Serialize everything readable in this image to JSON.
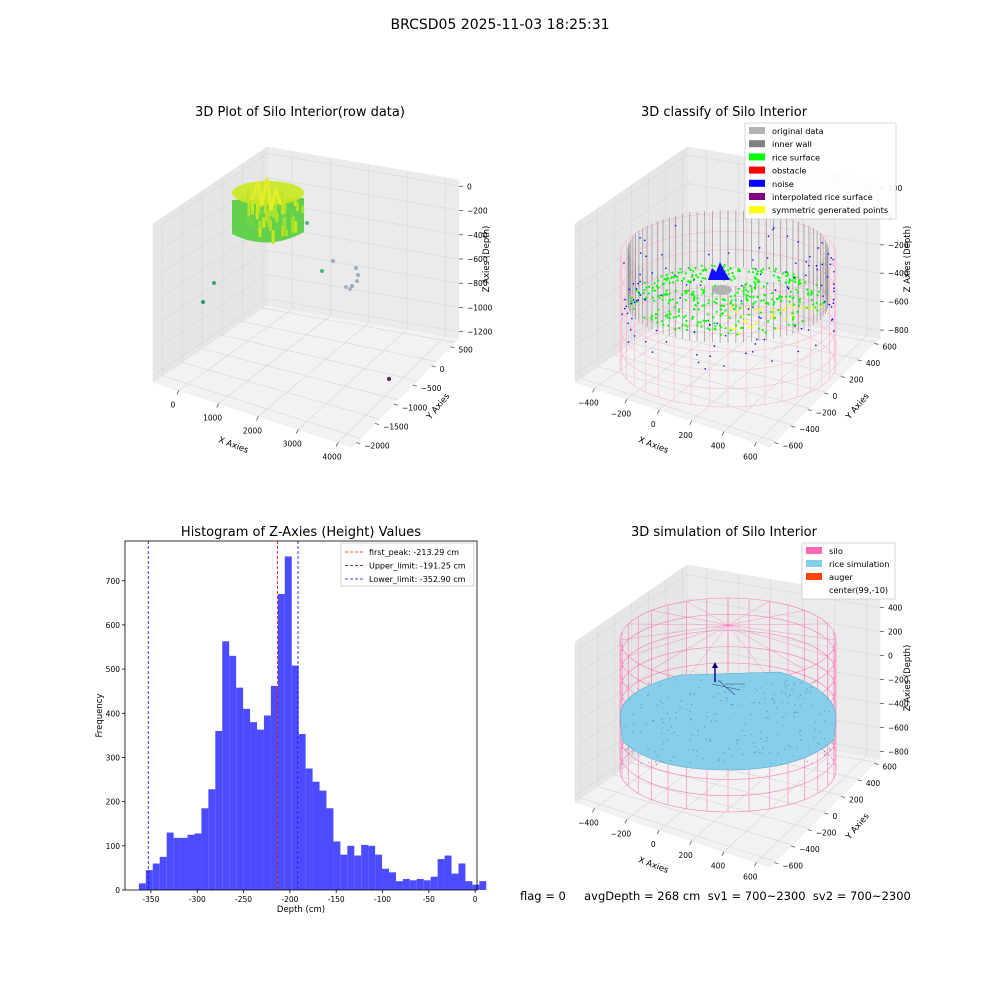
{
  "figure": {
    "suptitle": "BRCSD05 2025-11-03 18:25:31",
    "footer": "flag = 0     avgDepth = 268 cm  sv1 = 700~2300  sv2 = 700~2300"
  },
  "colors": {
    "hist_bar": "#4b4bff",
    "first_peak": "#ff0000",
    "limit_line": "#0000ff",
    "pane": "#f2f2f2",
    "grid": "#d9d9d9",
    "silo_wire": "#ff69b4",
    "rice_sim": "#87ceeb",
    "rice_surface": "#00ff00",
    "noise": "#0000ff",
    "wall": "#808080",
    "symmetric": "#ffff00"
  },
  "chart_data": [
    {
      "type": "scatter",
      "title": "3D Plot of Silo Interior(row data)",
      "xlabel": "X Axies",
      "ylabel": "Y Axies",
      "zlabel": "Z Axies (Depth)",
      "xticks": [
        "0",
        "1000",
        "2000",
        "3000",
        "4000"
      ],
      "yticks": [
        "500",
        "0",
        "−500",
        "−1000",
        "−1500",
        "−2000"
      ],
      "zticks": [
        "0",
        "−200",
        "−400",
        "−600",
        "−800",
        "−1000",
        "−1200"
      ],
      "grid": true
    },
    {
      "type": "scatter",
      "title": "3D classify of Silo Interior",
      "xlabel": "X Axies",
      "ylabel": "Y Axies",
      "zlabel": "Z Axies (Depth)",
      "xticks": [
        "−400",
        "−200",
        "0",
        "200",
        "400",
        "600"
      ],
      "yticks": [
        "600",
        "400",
        "200",
        "0",
        "−200",
        "−400",
        "−600"
      ],
      "zticks": [
        "200",
        "0",
        "−200",
        "−400",
        "−600",
        "−800"
      ],
      "legend": {
        "placement": "upper-right",
        "entries": [
          {
            "label": "original data",
            "color": "#b3b3b3"
          },
          {
            "label": "inner wall",
            "color": "#808080"
          },
          {
            "label": "rice surface",
            "color": "#00ff00"
          },
          {
            "label": "obstacle",
            "color": "#ff0000"
          },
          {
            "label": "noise",
            "color": "#0000ff"
          },
          {
            "label": "interpolated rice surface",
            "color": "#800080"
          },
          {
            "label": "symmetric generated points",
            "color": "#ffff00"
          }
        ]
      },
      "grid": true
    },
    {
      "type": "bar",
      "title": "Histogram of Z-Axies (Height) Values",
      "xlabel": "Depth (cm)",
      "ylabel": "Frequency",
      "xlim": [
        -378,
        2
      ],
      "ylim": [
        0,
        790
      ],
      "xticks": [
        -350,
        -300,
        -250,
        -200,
        -150,
        -100,
        -50,
        0
      ],
      "yticks": [
        0,
        100,
        200,
        300,
        400,
        500,
        600,
        700
      ],
      "bin_width": 7.5,
      "bin_start": -363,
      "values": [
        15,
        45,
        60,
        75,
        130,
        118,
        118,
        125,
        128,
        185,
        228,
        360,
        563,
        530,
        458,
        410,
        380,
        363,
        395,
        462,
        670,
        755,
        508,
        353,
        275,
        245,
        225,
        185,
        110,
        80,
        100,
        78,
        102,
        100,
        80,
        48,
        40,
        20,
        25,
        22,
        25,
        22,
        30,
        70,
        78,
        37,
        60,
        20,
        12,
        20
      ],
      "vlines": [
        {
          "x": -213.29,
          "label": "first_peak: -213.29 cm",
          "color": "#ff0000"
        },
        {
          "x": -191.25,
          "label": "Upper_limit: -191.25 cm",
          "color": "#0000ff"
        },
        {
          "x": -352.9,
          "label": "Lower_limit: -352.90 cm",
          "color": "#0000ff"
        }
      ],
      "legend": {
        "placement": "upper-right"
      }
    },
    {
      "type": "scatter",
      "title": "3D simulation of Silo Interior",
      "xlabel": "X Axies",
      "ylabel": "Y Axies",
      "zlabel": "Z Axies (Depth)",
      "xticks": [
        "−400",
        "−200",
        "0",
        "200",
        "400",
        "600"
      ],
      "yticks": [
        "600",
        "400",
        "200",
        "0",
        "−200",
        "−400",
        "−600"
      ],
      "zticks": [
        "400",
        "200",
        "0",
        "−200",
        "−400",
        "−600",
        "−800"
      ],
      "legend": {
        "placement": "upper-right",
        "entries": [
          {
            "label": "silo",
            "color": "#ff69b4"
          },
          {
            "label": "rice simulation",
            "color": "#87ceeb"
          },
          {
            "label": "auger",
            "color": "#ff4500"
          },
          {
            "label": "center(99,-10)",
            "color": ""
          }
        ]
      },
      "grid": true
    }
  ]
}
